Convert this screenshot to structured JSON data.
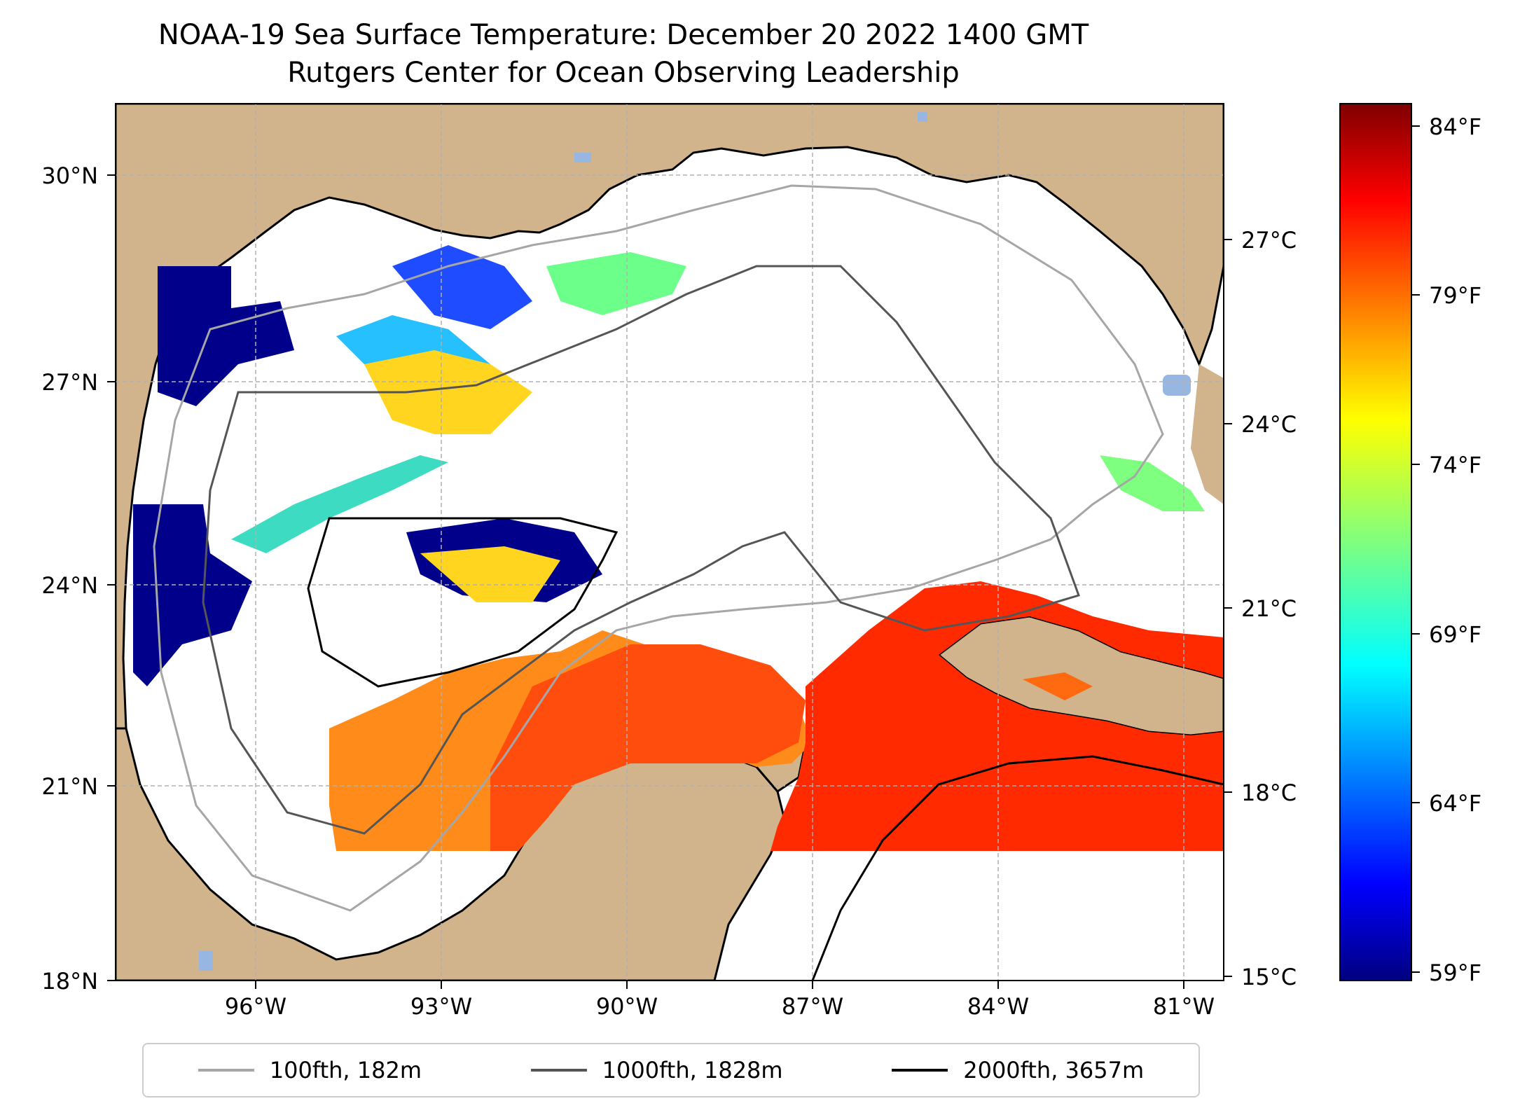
{
  "title": "NOAA-19 Sea Surface Temperature: December 20 2022 1400 GMT",
  "subtitle": "Rutgers Center for Ocean Observing Leadership",
  "lat_ticks": [
    "30°N",
    "27°N",
    "24°N",
    "21°N",
    "18°N"
  ],
  "lon_ticks": [
    "96°W",
    "93°W",
    "90°W",
    "87°W",
    "84°W",
    "81°W"
  ],
  "celsius_ticks": [
    "27°C",
    "24°C",
    "21°C",
    "18°C",
    "15°C"
  ],
  "fahrenheit_ticks": [
    "84°F",
    "79°F",
    "74°F",
    "69°F",
    "64°F",
    "59°F"
  ],
  "legend": [
    {
      "label": "100fth, 182m",
      "color": "#a6a6a6"
    },
    {
      "label": "1000fth, 1828m",
      "color": "#555555"
    },
    {
      "label": "2000fth, 3657m",
      "color": "#000000"
    }
  ],
  "colors": {
    "land": "#d2b48c",
    "ocean": "#ffffff",
    "lakes": "#97b6e1",
    "grid": "#b0b0b0"
  },
  "colorbar": {
    "colormap": "jet",
    "range_f": [
      59,
      85
    ],
    "range_c": [
      15,
      29.4
    ]
  }
}
